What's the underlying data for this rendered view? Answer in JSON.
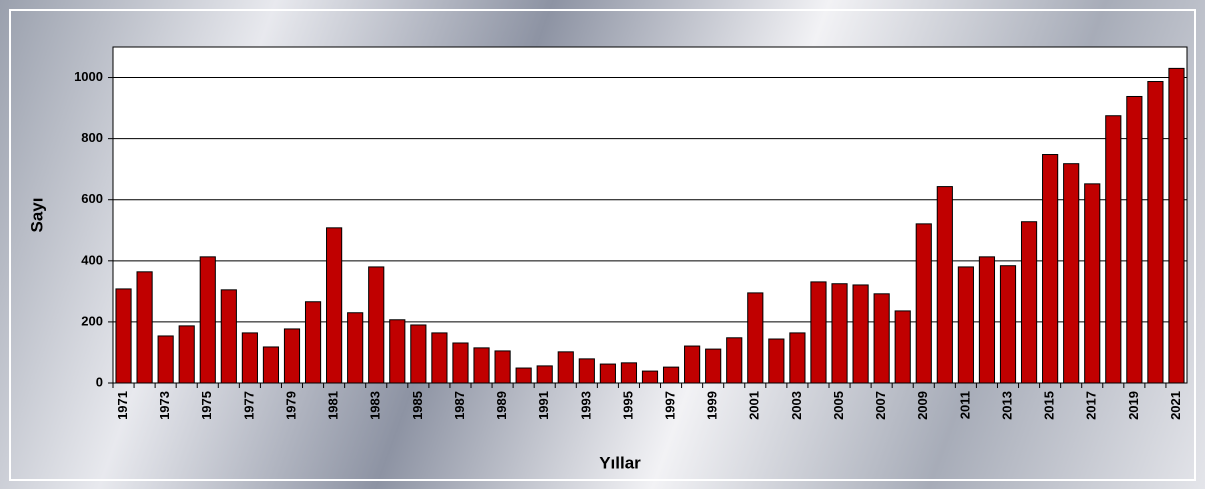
{
  "chart_data": {
    "type": "bar",
    "x_label": "Yıllar",
    "y_label": "Sayı",
    "categories": [
      "1971",
      null,
      "1973",
      null,
      "1975",
      null,
      "1977",
      null,
      "1979",
      null,
      "1981",
      null,
      "1983",
      null,
      "1985",
      null,
      "1987",
      null,
      "1989",
      null,
      "1991",
      null,
      "1993",
      null,
      "1995",
      null,
      "1997",
      null,
      "1999",
      null,
      "2001",
      null,
      "2003",
      null,
      "2005",
      null,
      "2007",
      null,
      "2009",
      null,
      "2011",
      null,
      "2013",
      null,
      "2015",
      null,
      "2017",
      null,
      "2019",
      null,
      "2021"
    ],
    "values": [
      308,
      364,
      154,
      187,
      413,
      305,
      164,
      118,
      177,
      266,
      508,
      230,
      380,
      207,
      190,
      164,
      131,
      115,
      105,
      49,
      56,
      102,
      79,
      62,
      66,
      39,
      52,
      121,
      111,
      148,
      295,
      144,
      164,
      331,
      325,
      321,
      292,
      236,
      521,
      643,
      380,
      413,
      384,
      528,
      748,
      718,
      652,
      875,
      938,
      987,
      1030
    ],
    "color": "#c00000",
    "ylim": [
      0,
      1100
    ],
    "yticks": [
      0,
      200,
      400,
      600,
      800,
      1000
    ],
    "grid": true
  }
}
